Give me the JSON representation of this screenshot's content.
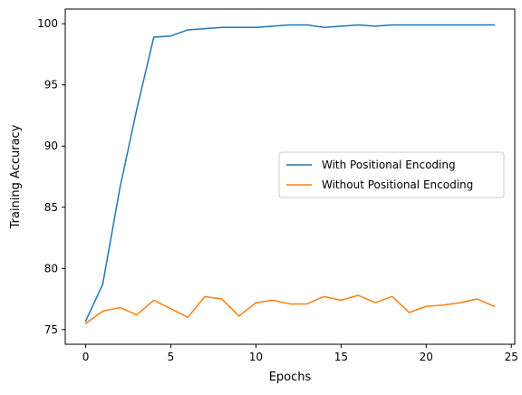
{
  "chart_data": {
    "type": "line",
    "title": "",
    "xlabel": "Epochs",
    "ylabel": "Training Accuracy",
    "xlim": [
      -1.2,
      25.2
    ],
    "ylim": [
      73.8,
      101.2
    ],
    "x_ticks": [
      0,
      5,
      10,
      15,
      20,
      25
    ],
    "y_ticks": [
      75,
      80,
      85,
      90,
      95,
      100
    ],
    "grid": false,
    "legend_position": "center-right",
    "x": [
      0,
      1,
      2,
      3,
      4,
      5,
      6,
      7,
      8,
      9,
      10,
      11,
      12,
      13,
      14,
      15,
      16,
      17,
      18,
      19,
      20,
      21,
      22,
      23,
      24
    ],
    "series": [
      {
        "name": "With Positional Encoding",
        "color": "#1f77b4",
        "values": [
          75.7,
          78.7,
          86.5,
          93.0,
          98.9,
          99.0,
          99.5,
          99.6,
          99.7,
          99.7,
          99.7,
          99.8,
          99.9,
          99.9,
          99.7,
          99.8,
          99.9,
          99.8,
          99.9,
          99.9,
          99.9,
          99.9,
          99.9,
          99.9,
          99.9
        ]
      },
      {
        "name": "Without Positional Encoding",
        "color": "#ff7f0e",
        "values": [
          75.5,
          76.5,
          76.8,
          76.2,
          77.4,
          76.7,
          76.0,
          77.7,
          77.5,
          76.1,
          77.2,
          77.4,
          77.1,
          77.1,
          77.7,
          77.4,
          77.8,
          77.2,
          77.7,
          76.4,
          76.9,
          77.0,
          77.2,
          77.5,
          76.9
        ]
      }
    ]
  }
}
